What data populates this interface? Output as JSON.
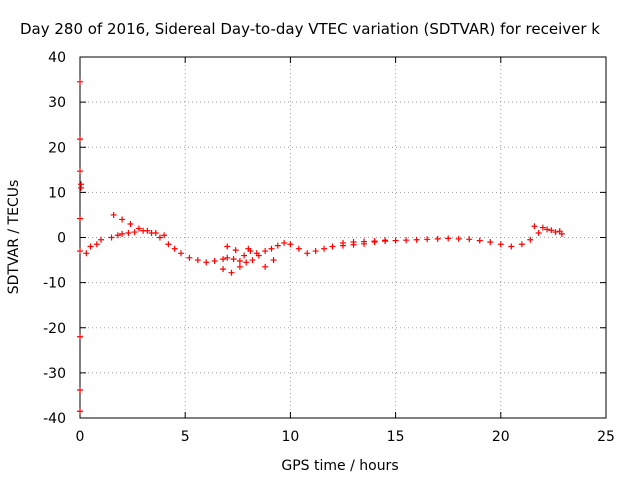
{
  "chart_data": {
    "type": "scatter",
    "title": "Day 280 of 2016, Sidereal Day-to-day VTEC variation (SDTVAR) for receiver k",
    "xlabel": "GPS time / hours",
    "ylabel": "SDTVAR / TECUs",
    "xlim": [
      0,
      25
    ],
    "ylim": [
      -40,
      40
    ],
    "xticks": [
      0,
      5,
      10,
      15,
      20,
      25
    ],
    "yticks": [
      -40,
      -30,
      -20,
      -10,
      0,
      10,
      20,
      30,
      40
    ],
    "grid": true,
    "marker": "+",
    "color": "#ff0000",
    "x": [
      0.0,
      0.0,
      0.0,
      0.05,
      0.05,
      0.0,
      0.0,
      0.0,
      0.0,
      0.0,
      0.3,
      0.5,
      0.8,
      1.0,
      1.5,
      1.8,
      2.0,
      2.3,
      2.6,
      3.0,
      3.4,
      3.8,
      4.2,
      4.5,
      4.8,
      5.2,
      5.6,
      6.0,
      6.4,
      6.8,
      7.0,
      7.3,
      7.6,
      7.9,
      8.2,
      8.5,
      8.8,
      9.1,
      9.4,
      9.7,
      10.0,
      10.4,
      10.8,
      11.2,
      11.6,
      12.0,
      12.5,
      13.0,
      13.5,
      14.0,
      14.5,
      15.0,
      15.5,
      16.0,
      16.5,
      17.0,
      17.5,
      18.0,
      18.5,
      19.0,
      19.5,
      20.0,
      20.5,
      21.0,
      21.4,
      21.8,
      22.2,
      22.6,
      22.9,
      1.6,
      2.0,
      2.4,
      2.8,
      3.2,
      3.6,
      4.0,
      6.8,
      7.2,
      7.6,
      8.0,
      8.4,
      8.8,
      9.2,
      7.0,
      7.4,
      7.8,
      8.1,
      12.5,
      13.0,
      13.5,
      14.0,
      14.5,
      21.6,
      22.0,
      22.4,
      22.8
    ],
    "y": [
      34.5,
      21.8,
      14.7,
      11.8,
      11.0,
      4.2,
      -3.0,
      -22.0,
      -33.8,
      -38.5,
      -3.5,
      -2.0,
      -1.5,
      -0.5,
      0.0,
      0.5,
      0.8,
      1.0,
      1.2,
      1.5,
      1.0,
      0.0,
      -1.5,
      -2.5,
      -3.5,
      -4.5,
      -5.0,
      -5.5,
      -5.2,
      -4.8,
      -4.5,
      -4.8,
      -5.2,
      -5.5,
      -5.0,
      -4.0,
      -3.0,
      -2.5,
      -1.8,
      -1.2,
      -1.5,
      -2.5,
      -3.5,
      -3.0,
      -2.5,
      -2.0,
      -1.8,
      -1.6,
      -1.4,
      -1.0,
      -0.8,
      -0.7,
      -0.6,
      -0.5,
      -0.4,
      -0.3,
      -0.2,
      -0.3,
      -0.4,
      -0.7,
      -1.0,
      -1.5,
      -2.0,
      -1.5,
      -0.5,
      1.0,
      1.8,
      1.2,
      0.8,
      5.0,
      4.0,
      3.0,
      2.0,
      1.5,
      1.0,
      0.5,
      -7.0,
      -7.8,
      -6.5,
      -2.5,
      -3.5,
      -6.5,
      -5.0,
      -2.0,
      -2.8,
      -4.0,
      -3.0,
      -1.2,
      -1.0,
      -0.9,
      -0.8,
      -0.6,
      2.5,
      2.2,
      1.6,
      1.4
    ]
  }
}
